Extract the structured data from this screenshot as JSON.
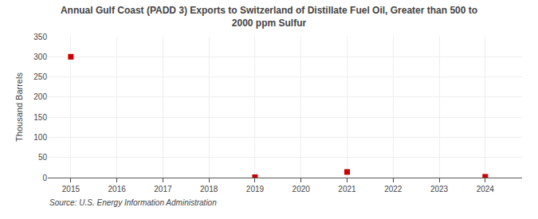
{
  "chart_data": {
    "type": "scatter",
    "title": "Annual Gulf Coast (PADD 3) Exports to Switzerland of Distillate Fuel Oil, Greater than 500 to\n2000 ppm Sulfur",
    "ylabel": "Thousand Barrels",
    "annotations": [
      "Source: U.S. Energy Information Administration"
    ],
    "x": [
      2015,
      2019,
      2021,
      2024
    ],
    "values": [
      300,
      1,
      14,
      2
    ],
    "color": "#cc0000",
    "marker": "square",
    "xlim": [
      2014.5,
      2024.8
    ],
    "xticks": [
      2015,
      2016,
      2017,
      2018,
      2019,
      2020,
      2021,
      2022,
      2023,
      2024
    ],
    "ylim": [
      0,
      350
    ],
    "yticks": [
      0,
      50,
      100,
      150,
      200,
      250,
      300,
      350
    ],
    "grid": true
  }
}
